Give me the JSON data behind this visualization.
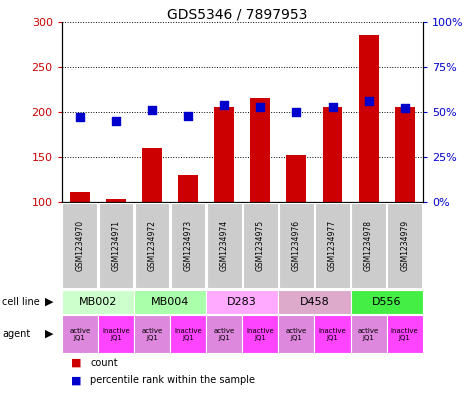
{
  "title": "GDS5346 / 7897953",
  "samples": [
    "GSM1234970",
    "GSM1234971",
    "GSM1234972",
    "GSM1234973",
    "GSM1234974",
    "GSM1234975",
    "GSM1234976",
    "GSM1234977",
    "GSM1234978",
    "GSM1234979"
  ],
  "bar_values": [
    112,
    104,
    160,
    130,
    205,
    215,
    152,
    205,
    285,
    205
  ],
  "dot_values": [
    47,
    45,
    51,
    48,
    54,
    53,
    50,
    53,
    56,
    52
  ],
  "bar_color": "#cc0000",
  "dot_color": "#0000cc",
  "ylim_left": [
    100,
    300
  ],
  "ylim_right": [
    0,
    100
  ],
  "yticks_left": [
    100,
    150,
    200,
    250,
    300
  ],
  "yticks_right": [
    0,
    25,
    50,
    75,
    100
  ],
  "ytick_labels_right": [
    "0%",
    "25%",
    "50%",
    "75%",
    "100%"
  ],
  "cell_lines": [
    {
      "label": "MB002",
      "span": [
        0,
        2
      ],
      "color": "#ccffcc"
    },
    {
      "label": "MB004",
      "span": [
        2,
        4
      ],
      "color": "#aaffaa"
    },
    {
      "label": "D283",
      "span": [
        4,
        6
      ],
      "color": "#ffaaff"
    },
    {
      "label": "D458",
      "span": [
        6,
        8
      ],
      "color": "#ddaacc"
    },
    {
      "label": "D556",
      "span": [
        8,
        10
      ],
      "color": "#44ee44"
    }
  ],
  "agents": [
    "active\nJQ1",
    "inactive\nJQ1",
    "active\nJQ1",
    "inactive\nJQ1",
    "active\nJQ1",
    "inactive\nJQ1",
    "active\nJQ1",
    "inactive\nJQ1",
    "active\nJQ1",
    "inactive\nJQ1"
  ],
  "agent_color_active": "#dd88dd",
  "agent_color_inactive": "#ff44ff",
  "bar_width": 0.55,
  "dot_size": 30,
  "background_color": "#ffffff"
}
